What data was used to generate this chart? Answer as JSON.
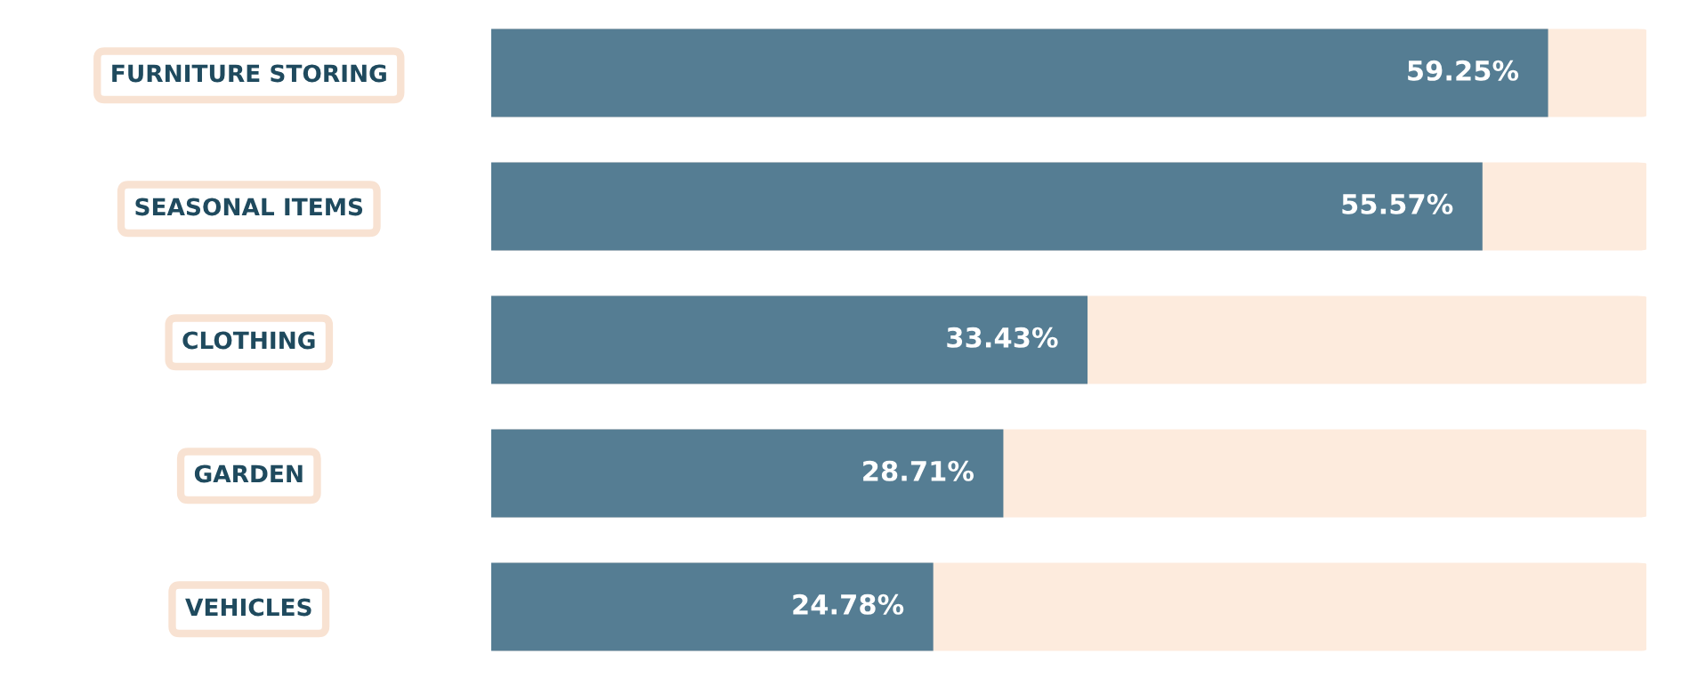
{
  "chart_data": {
    "type": "bar",
    "orientation": "horizontal",
    "categories": [
      "FURNITURE STORING",
      "SEASONAL ITEMS",
      "CLOTHING",
      "GARDEN",
      "VEHICLES"
    ],
    "values": [
      59.25,
      55.57,
      33.43,
      28.71,
      24.78
    ],
    "value_labels": [
      "59.25%",
      "55.57%",
      "33.43%",
      "28.71%",
      "24.78%"
    ],
    "color": "#557d93",
    "tick_labels": "y",
    "grid": false,
    "legend": false
  }
}
